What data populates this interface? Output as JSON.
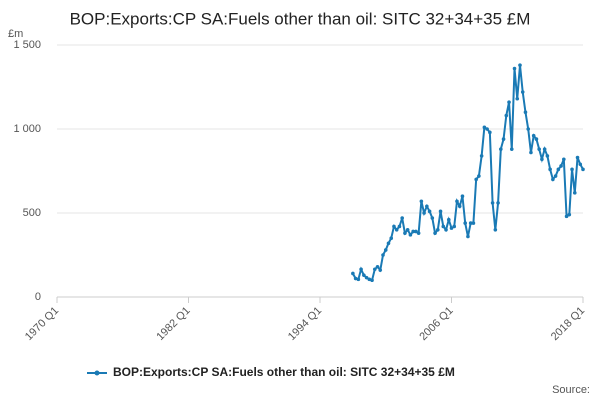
{
  "chart_data": {
    "type": "line",
    "title": "BOP:Exports:CP SA:Fuels other than oil: SITC 32+34+35 £M",
    "y_unit": "£m",
    "source": "Source:",
    "xlim": [
      1970,
      2018
    ],
    "xticks": [
      {
        "value": 1970,
        "label": "1970 Q1"
      },
      {
        "value": 1982,
        "label": "1982 Q1"
      },
      {
        "value": 1994,
        "label": "1994 Q1"
      },
      {
        "value": 2006,
        "label": "2006 Q1"
      },
      {
        "value": 2018,
        "label": "2018 Q1"
      }
    ],
    "ylim": [
      0,
      1500
    ],
    "yticks": [
      0,
      500,
      {
        "value": 1000,
        "label": "1 000"
      },
      {
        "value": 1500,
        "label": "1 500"
      }
    ],
    "grid": true,
    "legend": "bottom",
    "series": [
      {
        "name": "BOP:Exports:CP SA:Fuels other than oil: SITC 32+34+35 £M",
        "color": "#1a7ab5",
        "x": [
          1997,
          1997.25,
          1997.5,
          1997.75,
          1998,
          1998.25,
          1998.5,
          1998.75,
          1999,
          1999.25,
          1999.5,
          1999.75,
          2000,
          2000.25,
          2000.5,
          2000.75,
          2001,
          2001.25,
          2001.5,
          2001.75,
          2002,
          2002.25,
          2002.5,
          2002.75,
          2003,
          2003.25,
          2003.5,
          2003.75,
          2004,
          2004.25,
          2004.5,
          2004.75,
          2005,
          2005.25,
          2005.5,
          2005.75,
          2006,
          2006.25,
          2006.5,
          2006.75,
          2007,
          2007.25,
          2007.5,
          2007.75,
          2008,
          2008.25,
          2008.5,
          2008.75,
          2009,
          2009.25,
          2009.5,
          2009.75,
          2010,
          2010.25,
          2010.5,
          2010.75,
          2011,
          2011.25,
          2011.5,
          2011.75,
          2012,
          2012.25,
          2012.5,
          2012.75,
          2013,
          2013.25,
          2013.5,
          2013.75,
          2014,
          2014.25,
          2014.5,
          2014.75,
          2015,
          2015.25,
          2015.5,
          2015.75,
          2016,
          2016.25,
          2016.5,
          2016.75,
          2017,
          2017.25,
          2017.5,
          2017.75,
          2018
        ],
        "values": [
          140,
          110,
          105,
          165,
          130,
          115,
          105,
          100,
          165,
          180,
          160,
          250,
          280,
          320,
          350,
          420,
          400,
          420,
          470,
          380,
          400,
          370,
          390,
          390,
          380,
          570,
          500,
          540,
          510,
          470,
          380,
          400,
          510,
          420,
          400,
          460,
          410,
          420,
          570,
          540,
          600,
          440,
          360,
          440,
          440,
          700,
          720,
          840,
          1010,
          1000,
          980,
          560,
          400,
          560,
          880,
          940,
          1080,
          1160,
          880,
          1360,
          1180,
          1380,
          1220,
          1100,
          1000,
          860,
          960,
          940,
          880,
          820,
          880,
          840,
          760,
          700,
          720,
          760,
          780,
          820,
          480,
          490,
          760,
          620,
          830,
          790,
          760
        ]
      }
    ]
  }
}
